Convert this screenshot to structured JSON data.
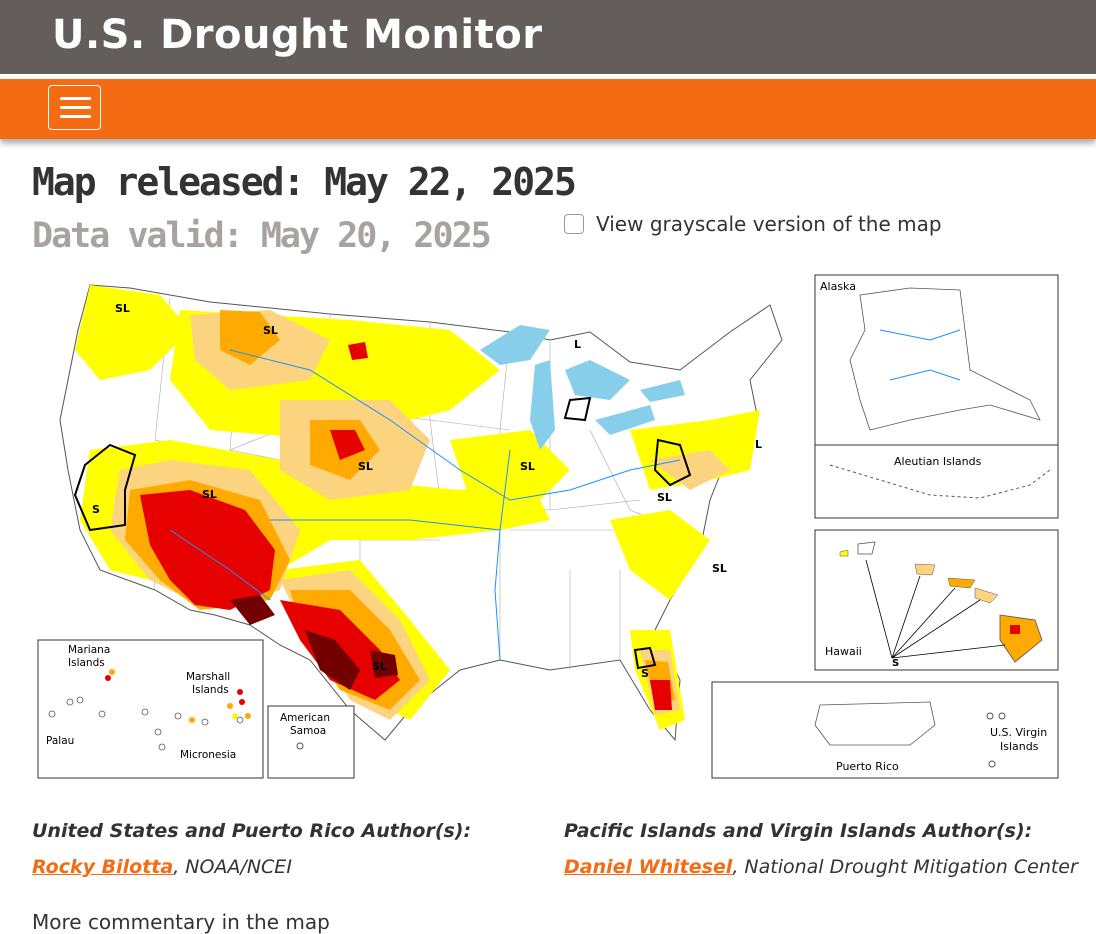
{
  "header": {
    "site_title": "U.S. Drought Monitor"
  },
  "nav": {
    "menu_icon": "hamburger-menu-icon"
  },
  "page": {
    "released_label": "Map released: May 22, 2025",
    "valid_label": "Data valid: May 20, 2025",
    "grayscale_label": "View grayscale version of the map",
    "grayscale_checked": false
  },
  "map": {
    "labels": {
      "sl": "SL",
      "s": "S",
      "l": "L",
      "alaska": "Alaska",
      "aleutian": "Aleutian Islands",
      "hawaii": "Hawaii",
      "puerto_rico": "Puerto Rico",
      "usvi_1": "U.S. Virgin",
      "usvi_2": "Islands",
      "mariana_1": "Mariana",
      "mariana_2": "Islands",
      "marshall_1": "Marshall",
      "marshall_2": "Islands",
      "palau": "Palau",
      "micronesia": "Micronesia",
      "samoa_1": "American",
      "samoa_2": "Samoa"
    },
    "colors": {
      "d0": "#ffff00",
      "d1": "#fcd37f",
      "d2": "#ffaa00",
      "d3": "#e60000",
      "d4": "#730000",
      "water": "#87ceeb",
      "river": "#1e90ff",
      "border": "#888888"
    }
  },
  "credits": {
    "us_heading": "United States and Puerto Rico Author(s):",
    "us_author": "Rocky Bilotta",
    "us_affiliation": ", NOAA/NCEI",
    "pacific_heading": "Pacific Islands and Virgin Islands Author(s):",
    "pacific_author": "Daniel Whitesel",
    "pacific_affiliation": ", National Drought Mitigation Center"
  },
  "more_text": "More commentary in the map"
}
